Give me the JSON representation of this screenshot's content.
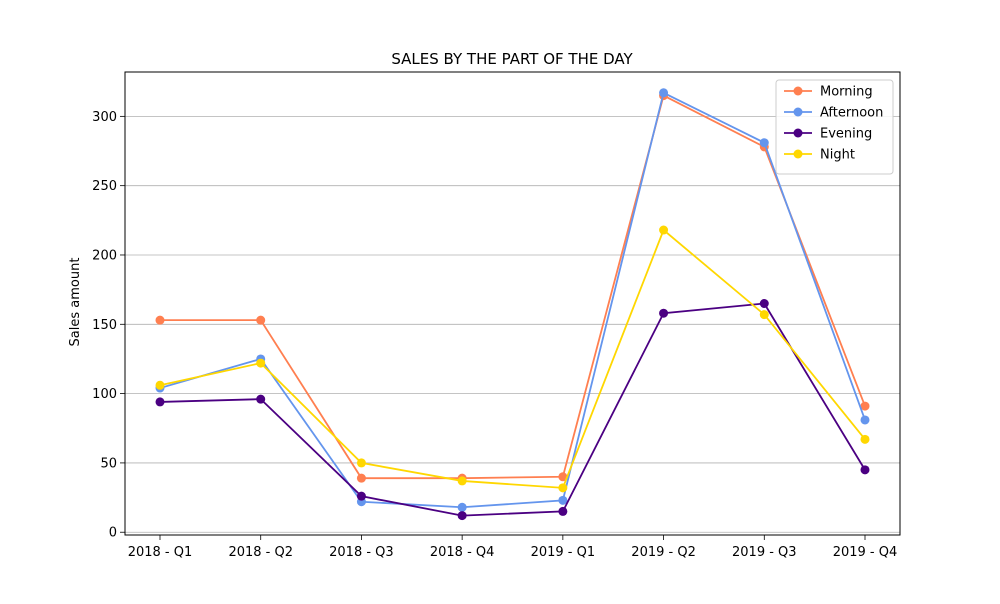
{
  "chart_data": {
    "type": "line",
    "title": "SALES BY THE PART OF THE DAY",
    "xlabel": "",
    "ylabel": "Sales amount",
    "categories": [
      "2018 - Q1",
      "2018 - Q2",
      "2018 - Q3",
      "2018 - Q4",
      "2019 - Q1",
      "2019 - Q2",
      "2019 - Q3",
      "2019 - Q4"
    ],
    "ylim": [
      -2,
      332
    ],
    "yticks": [
      0,
      50,
      100,
      150,
      200,
      250,
      300
    ],
    "grid": "horizontal",
    "legend_position": "top-right",
    "series": [
      {
        "name": "Morning",
        "color": "#FF7F50",
        "values": [
          153,
          153,
          39,
          39,
          40,
          315,
          278,
          91
        ]
      },
      {
        "name": "Afternoon",
        "color": "#6495ED",
        "values": [
          104,
          125,
          22,
          18,
          23,
          317,
          281,
          81
        ]
      },
      {
        "name": "Evening",
        "color": "#4B0082",
        "values": [
          94,
          96,
          26,
          12,
          15,
          158,
          165,
          45
        ]
      },
      {
        "name": "Night",
        "color": "#FFD700",
        "values": [
          106,
          122,
          50,
          37,
          32,
          218,
          157,
          67
        ]
      }
    ]
  }
}
